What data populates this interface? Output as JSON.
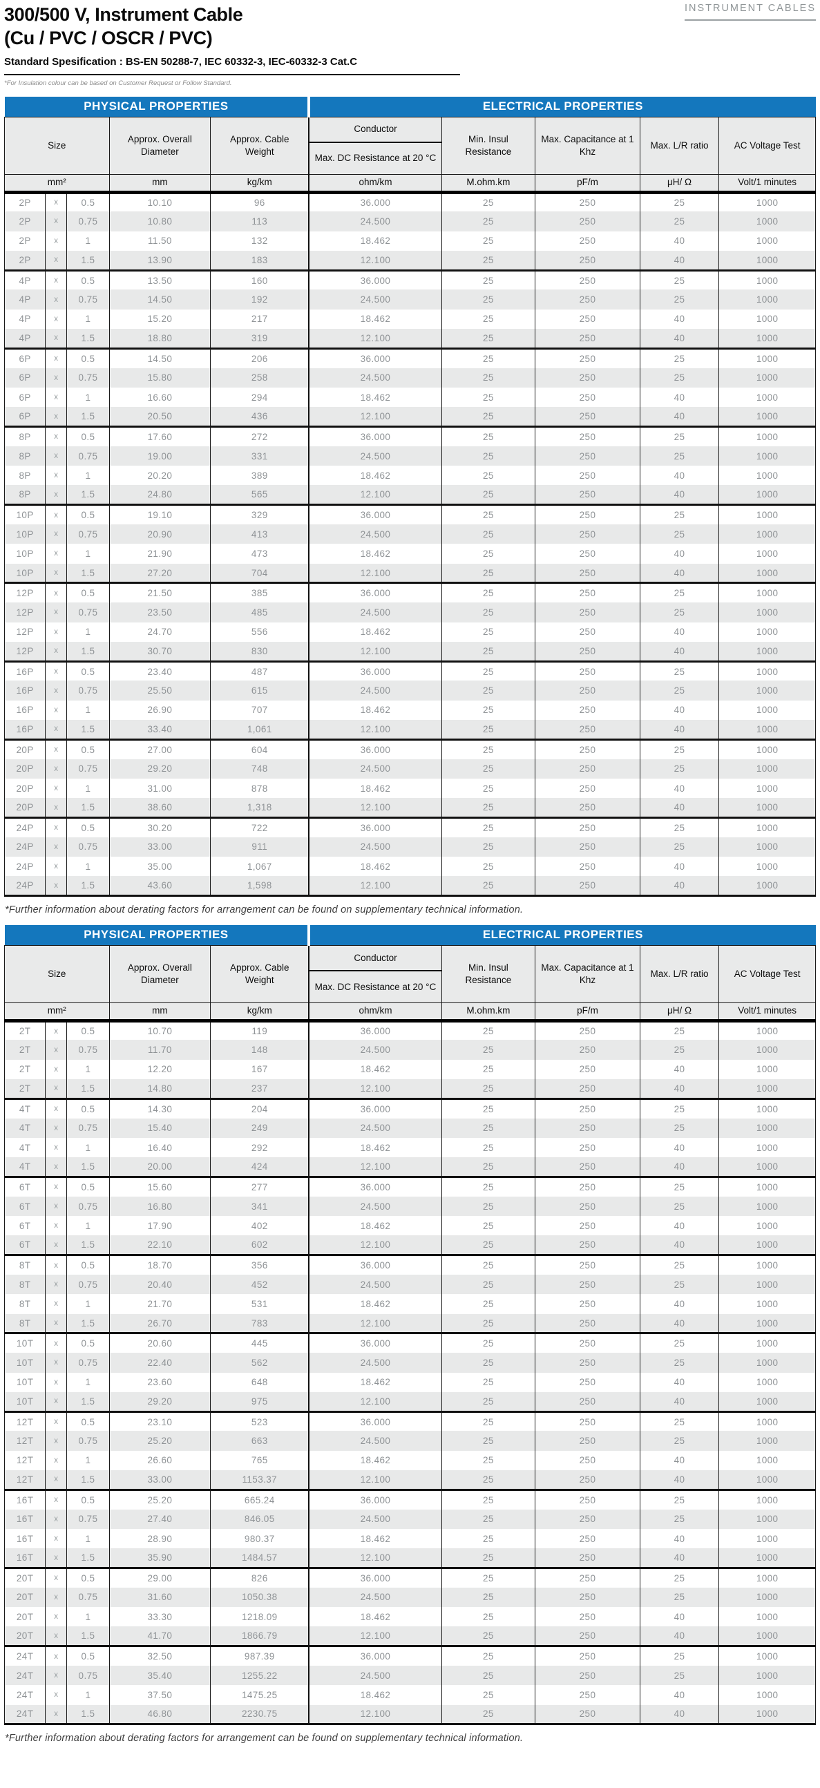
{
  "page": {
    "category_label": "INSTRUMENT CABLES",
    "title_line1": "300/500 V, Instrument Cable",
    "title_line2": "(Cu / PVC / OSCR / PVC)",
    "subtitle": "Standard Spesification : BS-EN 50288-7, IEC 60332-3, IEC-60332-3 Cat.C",
    "insulation_note": "*For Insulation colour can be based on Customer Request or Follow Standard.",
    "footnote": "*Further information about derating factors for arrangement can be found on supplementary technical information."
  },
  "colors": {
    "accent_blue": "#1477bd",
    "row_alt_gray": "#e8e9e9",
    "data_text_gray": "#8f9396"
  },
  "spec": {
    "bands": {
      "physical": "PHYSICAL PROPERTIES",
      "electrical": "ELECTRICAL PROPERTIES"
    },
    "columns": {
      "size": "Size",
      "diameter": "Approx. Overall Diameter",
      "weight": "Approx. Cable Weight",
      "conductor": "Conductor",
      "dc_resistance": "Max. DC Resistance at 20 °C",
      "min_insul": "Min. Insul Resistance",
      "capacitance": "Max. Capacitance at 1 Khz",
      "lr_ratio": "Max. L/R ratio",
      "ac_voltage": "AC Voltage Test"
    },
    "units": [
      "mm²",
      "mm",
      "kg/km",
      "ohm/km",
      "M.ohm.km",
      "pF/m",
      "μH/ Ω",
      "Volt/1 minutes"
    ]
  },
  "tables": [
    {
      "rows": [
        [
          "2P",
          "x",
          "0.5",
          "10.10",
          "96",
          "36.000",
          "25",
          "250",
          "25",
          "1000"
        ],
        [
          "2P",
          "x",
          "0.75",
          "10.80",
          "113",
          "24.500",
          "25",
          "250",
          "25",
          "1000"
        ],
        [
          "2P",
          "x",
          "1",
          "11.50",
          "132",
          "18.462",
          "25",
          "250",
          "40",
          "1000"
        ],
        [
          "2P",
          "x",
          "1.5",
          "13.90",
          "183",
          "12.100",
          "25",
          "250",
          "40",
          "1000"
        ],
        [
          "4P",
          "x",
          "0.5",
          "13.50",
          "160",
          "36.000",
          "25",
          "250",
          "25",
          "1000"
        ],
        [
          "4P",
          "x",
          "0.75",
          "14.50",
          "192",
          "24.500",
          "25",
          "250",
          "25",
          "1000"
        ],
        [
          "4P",
          "x",
          "1",
          "15.20",
          "217",
          "18.462",
          "25",
          "250",
          "40",
          "1000"
        ],
        [
          "4P",
          "x",
          "1.5",
          "18.80",
          "319",
          "12.100",
          "25",
          "250",
          "40",
          "1000"
        ],
        [
          "6P",
          "x",
          "0.5",
          "14.50",
          "206",
          "36.000",
          "25",
          "250",
          "25",
          "1000"
        ],
        [
          "6P",
          "x",
          "0.75",
          "15.80",
          "258",
          "24.500",
          "25",
          "250",
          "25",
          "1000"
        ],
        [
          "6P",
          "x",
          "1",
          "16.60",
          "294",
          "18.462",
          "25",
          "250",
          "40",
          "1000"
        ],
        [
          "6P",
          "x",
          "1.5",
          "20.50",
          "436",
          "12.100",
          "25",
          "250",
          "40",
          "1000"
        ],
        [
          "8P",
          "x",
          "0.5",
          "17.60",
          "272",
          "36.000",
          "25",
          "250",
          "25",
          "1000"
        ],
        [
          "8P",
          "x",
          "0.75",
          "19.00",
          "331",
          "24.500",
          "25",
          "250",
          "25",
          "1000"
        ],
        [
          "8P",
          "x",
          "1",
          "20.20",
          "389",
          "18.462",
          "25",
          "250",
          "40",
          "1000"
        ],
        [
          "8P",
          "x",
          "1.5",
          "24.80",
          "565",
          "12.100",
          "25",
          "250",
          "40",
          "1000"
        ],
        [
          "10P",
          "x",
          "0.5",
          "19.10",
          "329",
          "36.000",
          "25",
          "250",
          "25",
          "1000"
        ],
        [
          "10P",
          "x",
          "0.75",
          "20.90",
          "413",
          "24.500",
          "25",
          "250",
          "25",
          "1000"
        ],
        [
          "10P",
          "x",
          "1",
          "21.90",
          "473",
          "18.462",
          "25",
          "250",
          "40",
          "1000"
        ],
        [
          "10P",
          "x",
          "1.5",
          "27.20",
          "704",
          "12.100",
          "25",
          "250",
          "40",
          "1000"
        ],
        [
          "12P",
          "x",
          "0.5",
          "21.50",
          "385",
          "36.000",
          "25",
          "250",
          "25",
          "1000"
        ],
        [
          "12P",
          "x",
          "0.75",
          "23.50",
          "485",
          "24.500",
          "25",
          "250",
          "25",
          "1000"
        ],
        [
          "12P",
          "x",
          "1",
          "24.70",
          "556",
          "18.462",
          "25",
          "250",
          "40",
          "1000"
        ],
        [
          "12P",
          "x",
          "1.5",
          "30.70",
          "830",
          "12.100",
          "25",
          "250",
          "40",
          "1000"
        ],
        [
          "16P",
          "x",
          "0.5",
          "23.40",
          "487",
          "36.000",
          "25",
          "250",
          "25",
          "1000"
        ],
        [
          "16P",
          "x",
          "0.75",
          "25.50",
          "615",
          "24.500",
          "25",
          "250",
          "25",
          "1000"
        ],
        [
          "16P",
          "x",
          "1",
          "26.90",
          "707",
          "18.462",
          "25",
          "250",
          "40",
          "1000"
        ],
        [
          "16P",
          "x",
          "1.5",
          "33.40",
          "1,061",
          "12.100",
          "25",
          "250",
          "40",
          "1000"
        ],
        [
          "20P",
          "x",
          "0.5",
          "27.00",
          "604",
          "36.000",
          "25",
          "250",
          "25",
          "1000"
        ],
        [
          "20P",
          "x",
          "0.75",
          "29.20",
          "748",
          "24.500",
          "25",
          "250",
          "25",
          "1000"
        ],
        [
          "20P",
          "x",
          "1",
          "31.00",
          "878",
          "18.462",
          "25",
          "250",
          "40",
          "1000"
        ],
        [
          "20P",
          "x",
          "1.5",
          "38.60",
          "1,318",
          "12.100",
          "25",
          "250",
          "40",
          "1000"
        ],
        [
          "24P",
          "x",
          "0.5",
          "30.20",
          "722",
          "36.000",
          "25",
          "250",
          "25",
          "1000"
        ],
        [
          "24P",
          "x",
          "0.75",
          "33.00",
          "911",
          "24.500",
          "25",
          "250",
          "25",
          "1000"
        ],
        [
          "24P",
          "x",
          "1",
          "35.00",
          "1,067",
          "18.462",
          "25",
          "250",
          "40",
          "1000"
        ],
        [
          "24P",
          "x",
          "1.5",
          "43.60",
          "1,598",
          "12.100",
          "25",
          "250",
          "40",
          "1000"
        ]
      ]
    },
    {
      "rows": [
        [
          "2T",
          "x",
          "0.5",
          "10.70",
          "119",
          "36.000",
          "25",
          "250",
          "25",
          "1000"
        ],
        [
          "2T",
          "x",
          "0.75",
          "11.70",
          "148",
          "24.500",
          "25",
          "250",
          "25",
          "1000"
        ],
        [
          "2T",
          "x",
          "1",
          "12.20",
          "167",
          "18.462",
          "25",
          "250",
          "40",
          "1000"
        ],
        [
          "2T",
          "x",
          "1.5",
          "14.80",
          "237",
          "12.100",
          "25",
          "250",
          "40",
          "1000"
        ],
        [
          "4T",
          "x",
          "0.5",
          "14.30",
          "204",
          "36.000",
          "25",
          "250",
          "25",
          "1000"
        ],
        [
          "4T",
          "x",
          "0.75",
          "15.40",
          "249",
          "24.500",
          "25",
          "250",
          "25",
          "1000"
        ],
        [
          "4T",
          "x",
          "1",
          "16.40",
          "292",
          "18.462",
          "25",
          "250",
          "40",
          "1000"
        ],
        [
          "4T",
          "x",
          "1.5",
          "20.00",
          "424",
          "12.100",
          "25",
          "250",
          "40",
          "1000"
        ],
        [
          "6T",
          "x",
          "0.5",
          "15.60",
          "277",
          "36.000",
          "25",
          "250",
          "25",
          "1000"
        ],
        [
          "6T",
          "x",
          "0.75",
          "16.80",
          "341",
          "24.500",
          "25",
          "250",
          "25",
          "1000"
        ],
        [
          "6T",
          "x",
          "1",
          "17.90",
          "402",
          "18.462",
          "25",
          "250",
          "40",
          "1000"
        ],
        [
          "6T",
          "x",
          "1.5",
          "22.10",
          "602",
          "12.100",
          "25",
          "250",
          "40",
          "1000"
        ],
        [
          "8T",
          "x",
          "0.5",
          "18.70",
          "356",
          "36.000",
          "25",
          "250",
          "25",
          "1000"
        ],
        [
          "8T",
          "x",
          "0.75",
          "20.40",
          "452",
          "24.500",
          "25",
          "250",
          "25",
          "1000"
        ],
        [
          "8T",
          "x",
          "1",
          "21.70",
          "531",
          "18.462",
          "25",
          "250",
          "40",
          "1000"
        ],
        [
          "8T",
          "x",
          "1.5",
          "26.70",
          "783",
          "12.100",
          "25",
          "250",
          "40",
          "1000"
        ],
        [
          "10T",
          "x",
          "0.5",
          "20.60",
          "445",
          "36.000",
          "25",
          "250",
          "25",
          "1000"
        ],
        [
          "10T",
          "x",
          "0.75",
          "22.40",
          "562",
          "24.500",
          "25",
          "250",
          "25",
          "1000"
        ],
        [
          "10T",
          "x",
          "1",
          "23.60",
          "648",
          "18.462",
          "25",
          "250",
          "40",
          "1000"
        ],
        [
          "10T",
          "x",
          "1.5",
          "29.20",
          "975",
          "12.100",
          "25",
          "250",
          "40",
          "1000"
        ],
        [
          "12T",
          "x",
          "0.5",
          "23.10",
          "523",
          "36.000",
          "25",
          "250",
          "25",
          "1000"
        ],
        [
          "12T",
          "x",
          "0.75",
          "25.20",
          "663",
          "24.500",
          "25",
          "250",
          "25",
          "1000"
        ],
        [
          "12T",
          "x",
          "1",
          "26.60",
          "765",
          "18.462",
          "25",
          "250",
          "40",
          "1000"
        ],
        [
          "12T",
          "x",
          "1.5",
          "33.00",
          "1153.37",
          "12.100",
          "25",
          "250",
          "40",
          "1000"
        ],
        [
          "16T",
          "x",
          "0.5",
          "25.20",
          "665.24",
          "36.000",
          "25",
          "250",
          "25",
          "1000"
        ],
        [
          "16T",
          "x",
          "0.75",
          "27.40",
          "846.05",
          "24.500",
          "25",
          "250",
          "25",
          "1000"
        ],
        [
          "16T",
          "x",
          "1",
          "28.90",
          "980.37",
          "18.462",
          "25",
          "250",
          "40",
          "1000"
        ],
        [
          "16T",
          "x",
          "1.5",
          "35.90",
          "1484.57",
          "12.100",
          "25",
          "250",
          "40",
          "1000"
        ],
        [
          "20T",
          "x",
          "0.5",
          "29.00",
          "826",
          "36.000",
          "25",
          "250",
          "25",
          "1000"
        ],
        [
          "20T",
          "x",
          "0.75",
          "31.60",
          "1050.38",
          "24.500",
          "25",
          "250",
          "25",
          "1000"
        ],
        [
          "20T",
          "x",
          "1",
          "33.30",
          "1218.09",
          "18.462",
          "25",
          "250",
          "40",
          "1000"
        ],
        [
          "20T",
          "x",
          "1.5",
          "41.70",
          "1866.79",
          "12.100",
          "25",
          "250",
          "40",
          "1000"
        ],
        [
          "24T",
          "x",
          "0.5",
          "32.50",
          "987.39",
          "36.000",
          "25",
          "250",
          "25",
          "1000"
        ],
        [
          "24T",
          "x",
          "0.75",
          "35.40",
          "1255.22",
          "24.500",
          "25",
          "250",
          "25",
          "1000"
        ],
        [
          "24T",
          "x",
          "1",
          "37.50",
          "1475.25",
          "18.462",
          "25",
          "250",
          "40",
          "1000"
        ],
        [
          "24T",
          "x",
          "1.5",
          "46.80",
          "2230.75",
          "12.100",
          "25",
          "250",
          "40",
          "1000"
        ]
      ]
    }
  ]
}
